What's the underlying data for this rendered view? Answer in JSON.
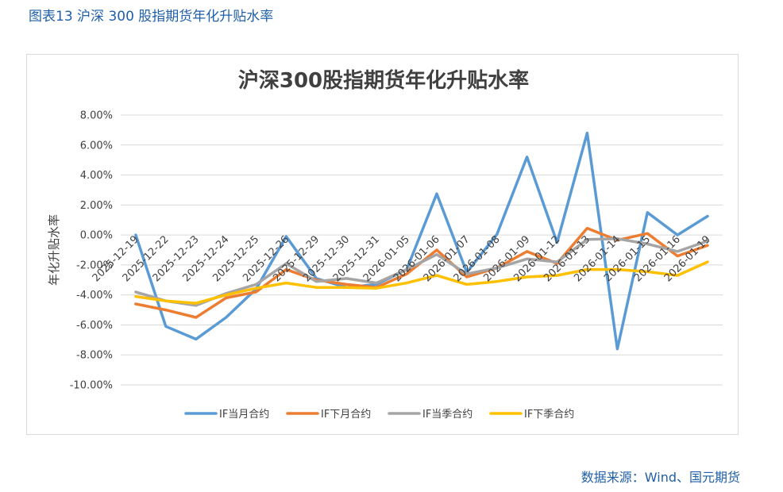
{
  "caption": "图表13  沪深 300 股指期货年化升贴水率",
  "source": "数据来源：Wind、国元期货",
  "chart_data": {
    "type": "line",
    "title": "沪深300股指期货年化升贴水率",
    "xlabel": "",
    "ylabel": "年化升贴水率",
    "ylim": [
      -10,
      8
    ],
    "yticks": [
      -10,
      -8,
      -6,
      -4,
      -2,
      0,
      2,
      4,
      6,
      8
    ],
    "ytick_labels": [
      "-10.00%",
      "-8.00%",
      "-6.00%",
      "-4.00%",
      "-2.00%",
      "0.00%",
      "2.00%",
      "4.00%",
      "6.00%",
      "8.00%"
    ],
    "grid": true,
    "legend_position": "bottom",
    "categories": [
      "2025-12-19",
      "2025-12-22",
      "2025-12-23",
      "2025-12-24",
      "2025-12-25",
      "2025-12-26",
      "2025-12-29",
      "2025-12-30",
      "2025-12-31",
      "2026-01-05",
      "2026-01-06",
      "2026-01-07",
      "2026-01-08",
      "2026-01-09",
      "2026-01-12",
      "2026-01-13",
      "2026-01-14",
      "2026-01-15",
      "2026-01-16",
      "2026-01-19"
    ],
    "series": [
      {
        "name": "IF当月合约",
        "color": "#5b9bd5",
        "values": [
          0.0,
          -6.1,
          -6.95,
          -5.5,
          -3.6,
          -0.1,
          -2.9,
          -3.5,
          -3.3,
          -2.3,
          2.75,
          -2.5,
          0.05,
          5.2,
          -0.5,
          6.8,
          -7.6,
          1.5,
          0.0,
          1.25
        ]
      },
      {
        "name": "IF下月合约",
        "color": "#ed7d31",
        "values": [
          -4.6,
          -5.0,
          -5.5,
          -4.2,
          -3.8,
          -2.3,
          -3.0,
          -3.3,
          -3.5,
          -2.6,
          -1.0,
          -2.8,
          -2.2,
          -1.1,
          -1.9,
          0.45,
          -0.35,
          0.1,
          -1.4,
          -0.7
        ]
      },
      {
        "name": "IF当季合约",
        "color": "#a5a5a5",
        "values": [
          -3.8,
          -4.4,
          -4.7,
          -3.9,
          -3.3,
          -1.9,
          -3.1,
          -2.9,
          -3.2,
          -2.3,
          -1.3,
          -2.6,
          -2.2,
          -1.6,
          -1.8,
          -0.3,
          -0.25,
          -0.6,
          -1.1,
          -0.4
        ]
      },
      {
        "name": "IF下季合约",
        "color": "#ffc000",
        "values": [
          -4.1,
          -4.4,
          -4.55,
          -4.0,
          -3.55,
          -3.2,
          -3.5,
          -3.5,
          -3.55,
          -3.2,
          -2.7,
          -3.3,
          -3.1,
          -2.8,
          -2.7,
          -2.3,
          -2.3,
          -2.45,
          -2.7,
          -1.8
        ]
      }
    ]
  }
}
